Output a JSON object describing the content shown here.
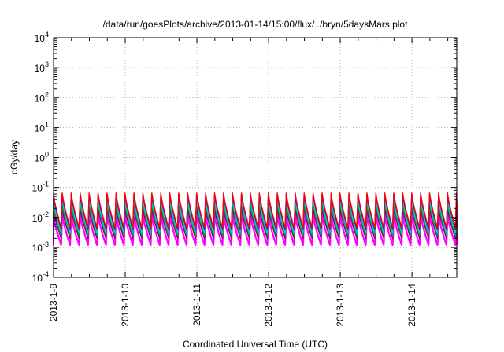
{
  "chart_data": {
    "type": "line",
    "title": "/data/run/goesPlots/archive/2013-01-14/15:00/flux/../bryn/5daysMars.plot",
    "xlabel": "Coordinated Universal Time (UTC)",
    "ylabel": "cGy/day",
    "x_axis": {
      "type": "time",
      "range": [
        "2013-01-09 00:00",
        "2013-01-14 15:00"
      ],
      "tick_labels": [
        "2013-1-9",
        "2013-1-10",
        "2013-1-11",
        "2013-1-12",
        "2013-1-13",
        "2013-1-14"
      ],
      "grid": true
    },
    "y_axis": {
      "scale": "log",
      "range": [
        0.0001,
        10000
      ],
      "tick_labels": [
        {
          "base": "10",
          "exp": "-4"
        },
        {
          "base": "10",
          "exp": "-3"
        },
        {
          "base": "10",
          "exp": "-2"
        },
        {
          "base": "10",
          "exp": "-1"
        },
        {
          "base": "10",
          "exp": "0"
        },
        {
          "base": "10",
          "exp": "1"
        },
        {
          "base": "10",
          "exp": "2"
        },
        {
          "base": "10",
          "exp": "3"
        },
        {
          "base": "10",
          "exp": "4"
        }
      ],
      "grid": true
    },
    "pattern": {
      "description_free": true,
      "cycles_per_day": 8,
      "shape": "sawtooth: sharp rise then decay"
    },
    "series": [
      {
        "color": "#ff0000",
        "peak": 0.065,
        "trough": 0.0045
      },
      {
        "color": "#0000ff",
        "peak": 0.06,
        "trough": 0.004
      },
      {
        "color": "#00cccc",
        "peak": 0.04,
        "trough": 0.003
      },
      {
        "color": "#00aa00",
        "peak": 0.03,
        "trough": 0.0025
      },
      {
        "color": "#800080",
        "peak": 0.02,
        "trough": 0.002
      },
      {
        "color": "#ff00ff",
        "peak": 0.012,
        "trough": 0.0012
      }
    ]
  }
}
